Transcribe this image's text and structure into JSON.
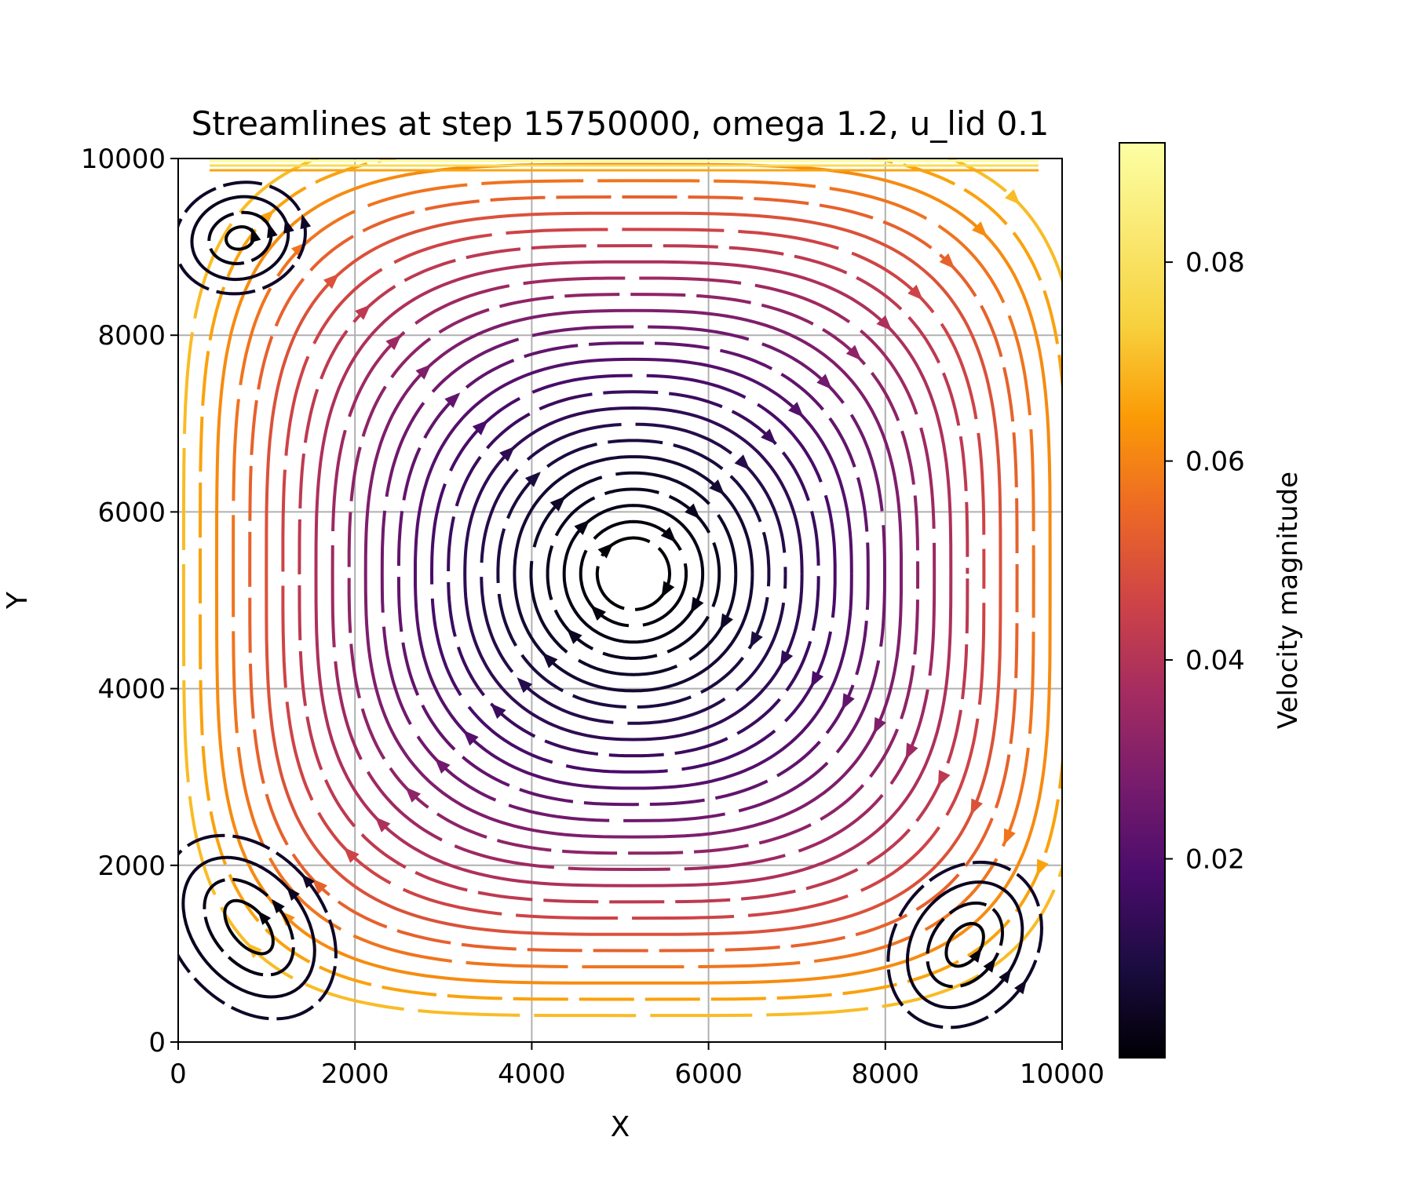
{
  "chart_data": {
    "type": "streamplot",
    "title": "Streamlines at step 15750000, omega 1.2, u_lid 0.1",
    "xlabel": "X",
    "ylabel": "Y",
    "xlim": [
      0,
      10000
    ],
    "ylim": [
      0,
      10000
    ],
    "xticks": [
      0,
      2000,
      4000,
      6000,
      8000,
      10000
    ],
    "yticks": [
      0,
      2000,
      4000,
      6000,
      8000,
      10000
    ],
    "xtick_labels": [
      "0",
      "2000",
      "4000",
      "6000",
      "8000",
      "10000"
    ],
    "ytick_labels": [
      "0",
      "2000",
      "4000",
      "6000",
      "8000",
      "10000"
    ],
    "grid": true,
    "colormap": "inferno",
    "colorbar": {
      "label": "Velocity magnitude",
      "range": [
        0.0,
        0.092
      ],
      "ticks": [
        0.02,
        0.04,
        0.06,
        0.08
      ],
      "tick_labels": [
        "0.02",
        "0.04",
        "0.06",
        "0.08"
      ]
    },
    "primary_vortex": {
      "center": [
        5150,
        5300
      ],
      "rotation": "clockwise",
      "max_speed_near_wall": 0.07
    },
    "secondary_vortices": [
      {
        "name": "top-left",
        "center": [
          700,
          9100
        ],
        "rotation": "counterclockwise"
      },
      {
        "name": "bottom-left",
        "center": [
          800,
          1300
        ],
        "rotation": "counterclockwise"
      },
      {
        "name": "bottom-right",
        "center": [
          8900,
          1100
        ],
        "rotation": "counterclockwise"
      }
    ],
    "lid_velocity_top": 0.09
  }
}
